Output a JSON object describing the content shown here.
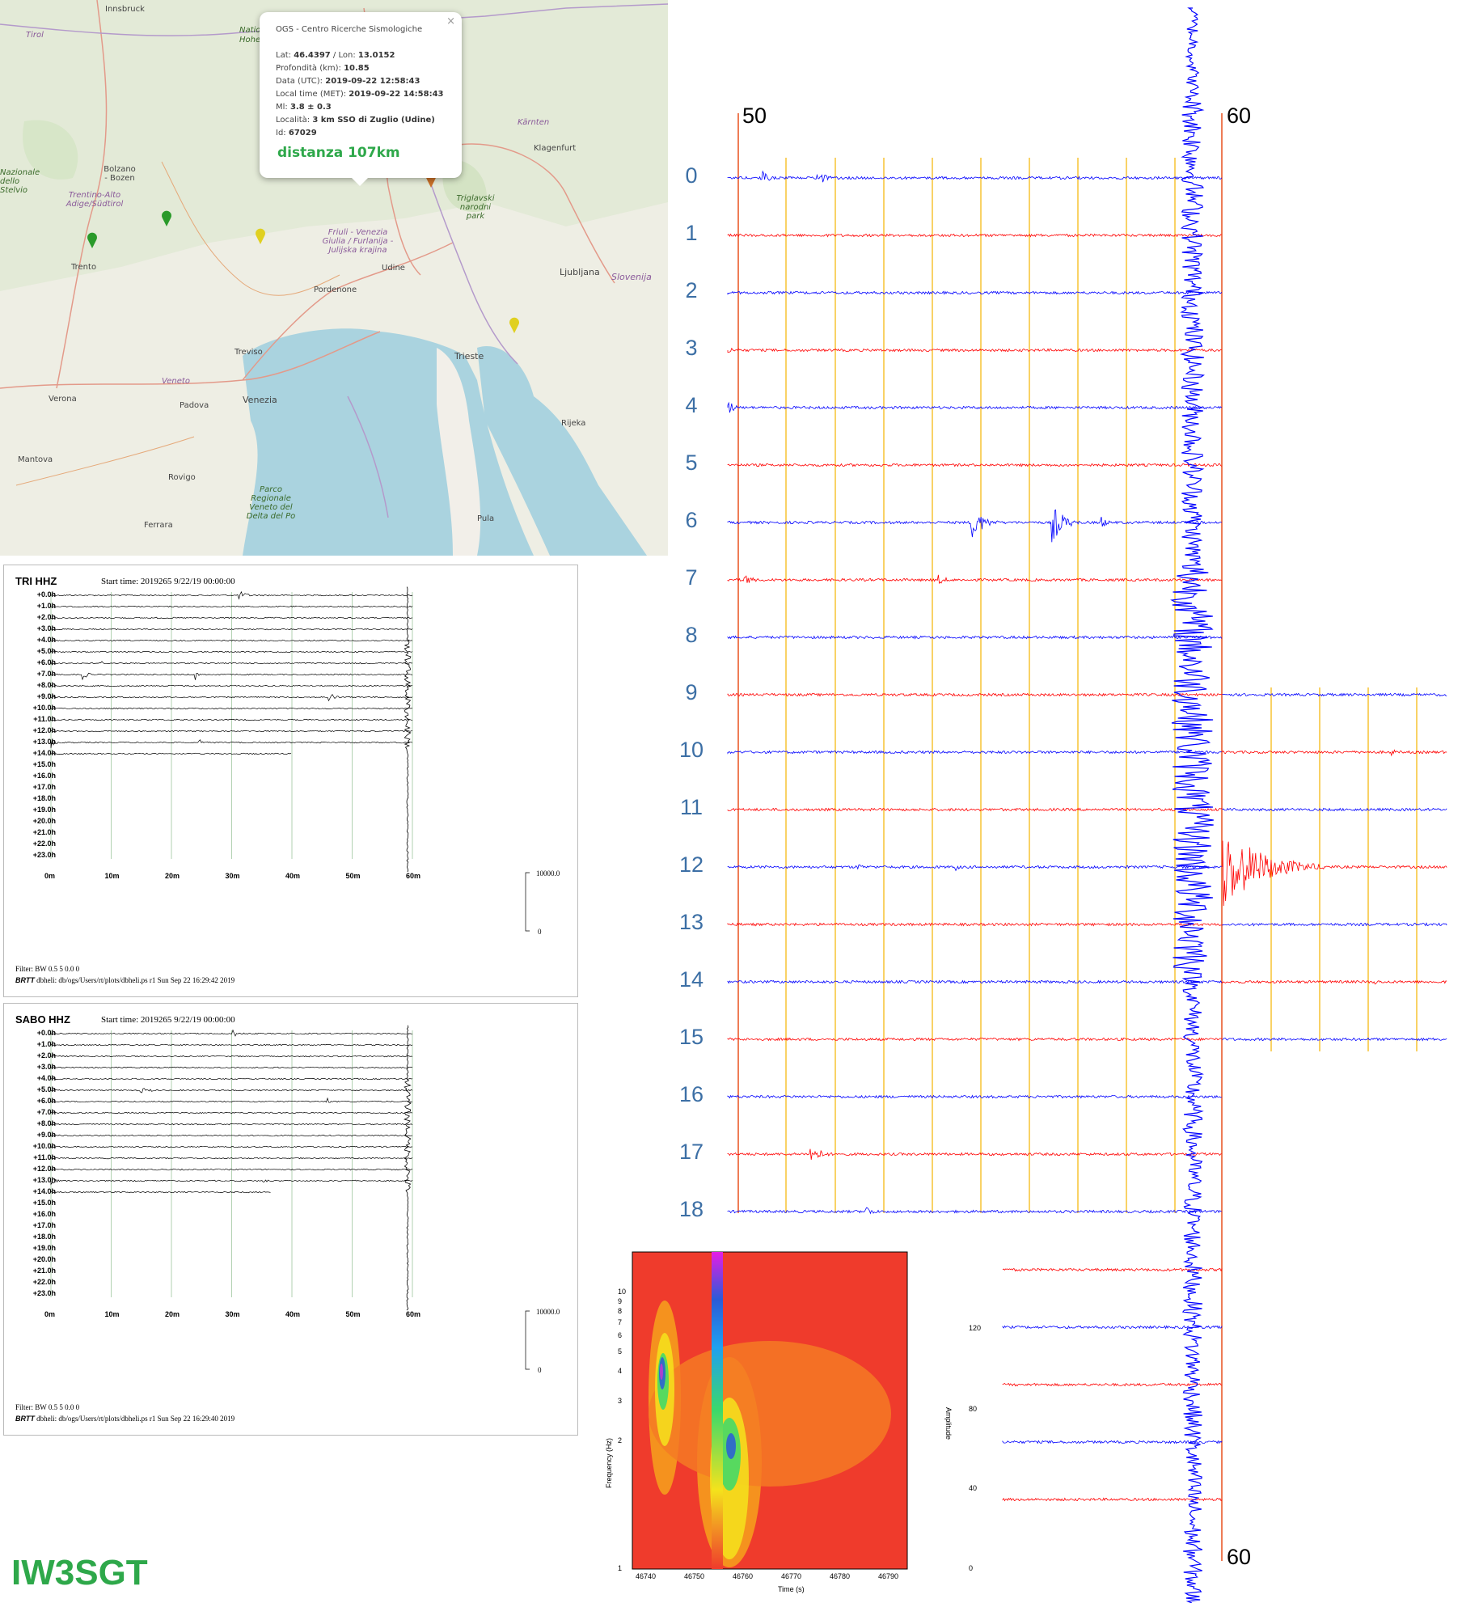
{
  "map": {
    "labels": {
      "innsbruck": "Innsbruck",
      "tirol": "Tirol",
      "nazionale": "Natio",
      "hohe": "Hohe",
      "bolzano": "Bolzano - Bozen",
      "nazionale_stelvio": "Nazionale dello Stelvio",
      "trentino": "Trentino-Alto Adige/Südtirol",
      "trento": "Trento",
      "karnten": "Kärnten",
      "klagenfurt": "Klagenfurt",
      "triglavski": "Triglavski narodni park",
      "friuli": "Friuli - Venezia Giulia / Furlanija - Julijska krajina",
      "udine": "Udine",
      "ljubljana": "Ljubljana",
      "slovenija": "Slovenija",
      "pordenone": "Pordenone",
      "treviso": "Treviso",
      "trieste": "Trieste",
      "verona": "Verona",
      "veneto": "Veneto",
      "venezia": "Venezia",
      "padova": "Padova",
      "rijeka": "Rijeka",
      "mantova": "Mantova",
      "rovigo": "Rovigo",
      "parco": "Parco Regionale Veneto del Delta del Po",
      "ferrara": "Ferrara",
      "pula": "Pula"
    },
    "popup": {
      "header": "OGS - Centro Ricerche Sismologiche",
      "lat_label": "Lat:",
      "lat": "46.4397",
      "lon_label": "/ Lon:",
      "lon": "13.0152",
      "depth_label": "Profondità (km):",
      "depth": "10.85",
      "date_label": "Data (UTC):",
      "date": "2019-09-22 12:58:43",
      "local_label": "Local time (MET):",
      "local": "2019-09-22 14:58:43",
      "ml_label": "Ml:",
      "ml": "3.8 ± 0.3",
      "loc_label": "Località:",
      "loc": "3 km SSO di Zuglio (Udine)",
      "id_label": "Id:",
      "id": "67029",
      "distance": "distanza 107km",
      "close": "×"
    }
  },
  "heli_tri": {
    "title": "TRI HHZ",
    "start": "Start time: 2019265  9/22/19 00:00:00",
    "filter": "Filter: BW 0.5 5 0.0 0",
    "brtt": "BRTT",
    "footer": " dbheli: db/ogs/Users/rt/plots/dbheli.ps r1 Sun Sep 22 16:29:42 2019",
    "scale_top": "10000.0",
    "scale_bot": "0"
  },
  "heli_sabo": {
    "title": "SABO HHZ",
    "start": "Start time: 2019265  9/22/19 00:00:00",
    "filter": "Filter: BW 0.5 5 0.0 0",
    "brtt": "BRTT",
    "footer": " dbheli: db/ogs/Users/rt/plots/dbheli.ps r1 Sun Sep 22 16:29:40 2019",
    "scale_top": "10000.0",
    "scale_bot": "0"
  },
  "heli_rows": [
    "+0.0h",
    "+1.0h",
    "+2.0h",
    "+3.0h",
    "+4.0h",
    "+5.0h",
    "+6.0h",
    "+7.0h",
    "+8.0h",
    "+9.0h",
    "+10.0h",
    "+11.0h",
    "+12.0h",
    "+13.0h",
    "+14.0h",
    "+15.0h",
    "+16.0h",
    "+17.0h",
    "+18.0h",
    "+19.0h",
    "+20.0h",
    "+21.0h",
    "+22.0h",
    "+23.0h"
  ],
  "heli_xticks": [
    "0m",
    "10m",
    "20m",
    "30m",
    "40m",
    "50m",
    "60m"
  ],
  "big": {
    "top_left": "50",
    "top_right": "60",
    "bottom_right": "60",
    "rows": [
      "0",
      "1",
      "2",
      "3",
      "4",
      "5",
      "6",
      "7",
      "8",
      "9",
      "10",
      "11",
      "12",
      "13",
      "14",
      "15",
      "16",
      "17",
      "18"
    ],
    "colors": {
      "blue": "#0000ff",
      "red": "#ff0000",
      "marker": "#e8501e",
      "minor": "#f5b400"
    }
  },
  "spectrogram": {
    "ylabel": "Frequency (Hz)",
    "xlabel": "Time (s)",
    "cbar_label": "Amplitude",
    "yticks": [
      "10",
      "9",
      "8",
      "7",
      "6",
      "5",
      "4",
      "3",
      "2",
      "1"
    ],
    "xticks": [
      "46740",
      "46750",
      "46760",
      "46770",
      "46780",
      "46790"
    ],
    "cticks": [
      "120",
      "80",
      "40",
      "0"
    ]
  },
  "callsign": "IW3SGT"
}
